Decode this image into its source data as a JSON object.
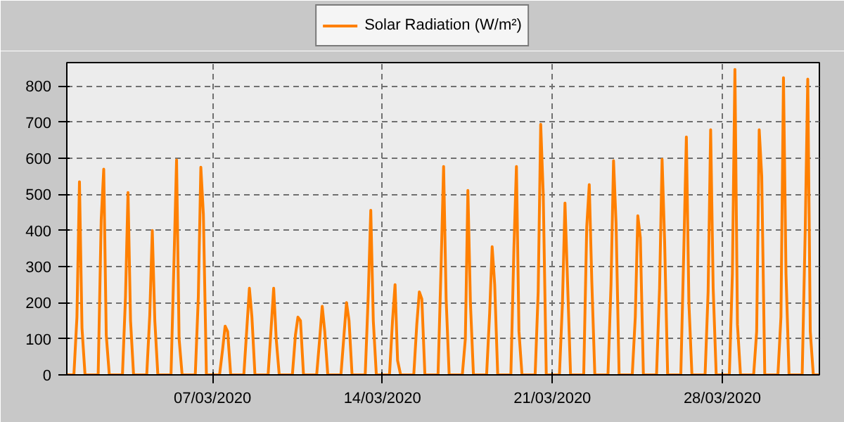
{
  "chart_data": {
    "type": "line",
    "xlim": [
      "2020-03-01T00:00",
      "2020-04-01T00:00"
    ],
    "xticks": [
      {
        "value": "2020-03-07",
        "label": "07/03/2020"
      },
      {
        "value": "2020-03-14",
        "label": "14/03/2020"
      },
      {
        "value": "2020-03-21",
        "label": "21/03/2020"
      },
      {
        "value": "2020-03-28",
        "label": "28/03/2020"
      }
    ],
    "ylim": [
      0,
      865
    ],
    "yticks": [
      0,
      100,
      200,
      300,
      400,
      500,
      600,
      700,
      800
    ],
    "grid": true,
    "legend": "top",
    "marker": "none",
    "line_style": "solid",
    "series": [
      {
        "name": "Solar Radiation (W/m²)",
        "color": "#ff8000",
        "x": [
          "2020-03-01T00:00",
          "2020-03-01T07:00",
          "2020-03-01T10:00",
          "2020-03-01T12:30",
          "2020-03-01T15:00",
          "2020-03-01T18:00",
          "2020-03-02T07:00",
          "2020-03-02T10:00",
          "2020-03-02T12:30",
          "2020-03-02T15:00",
          "2020-03-02T18:00",
          "2020-03-03T07:00",
          "2020-03-03T10:00",
          "2020-03-03T12:30",
          "2020-03-03T15:00",
          "2020-03-03T18:00",
          "2020-03-04T07:00",
          "2020-03-04T10:00",
          "2020-03-04T12:30",
          "2020-03-04T15:00",
          "2020-03-04T18:00",
          "2020-03-05T07:00",
          "2020-03-05T10:00",
          "2020-03-05T12:30",
          "2020-03-05T15:00",
          "2020-03-05T18:00",
          "2020-03-06T07:00",
          "2020-03-06T10:00",
          "2020-03-06T12:30",
          "2020-03-06T15:00",
          "2020-03-06T18:00",
          "2020-03-07T07:00",
          "2020-03-07T10:00",
          "2020-03-07T12:30",
          "2020-03-07T15:00",
          "2020-03-07T18:00",
          "2020-03-08T07:00",
          "2020-03-08T10:00",
          "2020-03-08T12:30",
          "2020-03-08T15:00",
          "2020-03-08T18:00",
          "2020-03-09T07:00",
          "2020-03-09T10:00",
          "2020-03-09T12:30",
          "2020-03-09T15:00",
          "2020-03-09T18:00",
          "2020-03-10T07:00",
          "2020-03-10T10:00",
          "2020-03-10T12:30",
          "2020-03-10T15:00",
          "2020-03-10T18:00",
          "2020-03-11T07:00",
          "2020-03-11T10:00",
          "2020-03-11T12:30",
          "2020-03-11T15:00",
          "2020-03-11T18:00",
          "2020-03-12T07:00",
          "2020-03-12T10:00",
          "2020-03-12T12:30",
          "2020-03-12T15:00",
          "2020-03-12T18:00",
          "2020-03-13T07:00",
          "2020-03-13T10:00",
          "2020-03-13T12:30",
          "2020-03-13T15:00",
          "2020-03-13T18:00",
          "2020-03-14T07:00",
          "2020-03-14T10:00",
          "2020-03-14T12:30",
          "2020-03-14T15:00",
          "2020-03-14T18:00",
          "2020-03-15T07:00",
          "2020-03-15T10:00",
          "2020-03-15T12:30",
          "2020-03-15T15:00",
          "2020-03-15T18:00",
          "2020-03-16T07:00",
          "2020-03-16T10:00",
          "2020-03-16T12:30",
          "2020-03-16T15:00",
          "2020-03-16T18:00",
          "2020-03-17T07:00",
          "2020-03-17T10:00",
          "2020-03-17T12:30",
          "2020-03-17T15:00",
          "2020-03-17T18:00",
          "2020-03-18T07:00",
          "2020-03-18T10:00",
          "2020-03-18T12:30",
          "2020-03-18T15:00",
          "2020-03-18T18:00",
          "2020-03-19T07:00",
          "2020-03-19T10:00",
          "2020-03-19T12:30",
          "2020-03-19T15:00",
          "2020-03-19T18:00",
          "2020-03-20T07:00",
          "2020-03-20T10:00",
          "2020-03-20T12:30",
          "2020-03-20T15:00",
          "2020-03-20T18:00",
          "2020-03-21T07:00",
          "2020-03-21T10:00",
          "2020-03-21T12:30",
          "2020-03-21T15:00",
          "2020-03-21T18:00",
          "2020-03-22T07:00",
          "2020-03-22T10:00",
          "2020-03-22T12:30",
          "2020-03-22T15:00",
          "2020-03-22T18:00",
          "2020-03-23T07:00",
          "2020-03-23T10:00",
          "2020-03-23T12:30",
          "2020-03-23T15:00",
          "2020-03-23T18:00",
          "2020-03-24T07:00",
          "2020-03-24T10:00",
          "2020-03-24T12:30",
          "2020-03-24T15:00",
          "2020-03-24T18:00",
          "2020-03-25T07:00",
          "2020-03-25T10:00",
          "2020-03-25T12:30",
          "2020-03-25T15:00",
          "2020-03-25T18:00",
          "2020-03-26T07:00",
          "2020-03-26T10:00",
          "2020-03-26T12:30",
          "2020-03-26T15:00",
          "2020-03-26T18:00",
          "2020-03-27T07:00",
          "2020-03-27T10:00",
          "2020-03-27T12:30",
          "2020-03-27T15:00",
          "2020-03-27T18:00",
          "2020-03-28T07:00",
          "2020-03-28T10:00",
          "2020-03-28T12:30",
          "2020-03-28T15:00",
          "2020-03-28T18:00",
          "2020-03-29T07:00",
          "2020-03-29T10:00",
          "2020-03-29T12:30",
          "2020-03-29T15:00",
          "2020-03-29T18:00",
          "2020-03-30T07:00",
          "2020-03-30T10:00",
          "2020-03-30T12:30",
          "2020-03-30T15:00",
          "2020-03-30T18:00",
          "2020-03-31T07:00",
          "2020-03-31T10:00",
          "2020-03-31T12:30",
          "2020-03-31T15:00",
          "2020-03-31T18:00",
          "2020-03-31T23:30"
        ],
        "values": [
          0,
          0,
          160,
          535,
          130,
          0,
          0,
          430,
          570,
          110,
          0,
          0,
          215,
          505,
          150,
          0,
          0,
          165,
          400,
          150,
          0,
          0,
          320,
          595,
          100,
          0,
          0,
          215,
          575,
          445,
          0,
          0,
          70,
          135,
          120,
          0,
          0,
          130,
          240,
          160,
          0,
          0,
          130,
          240,
          100,
          0,
          0,
          110,
          160,
          150,
          0,
          0,
          100,
          190,
          120,
          0,
          0,
          110,
          200,
          150,
          0,
          0,
          220,
          456,
          150,
          0,
          0,
          150,
          250,
          40,
          0,
          0,
          140,
          230,
          210,
          0,
          0,
          300,
          577,
          210,
          0,
          0,
          100,
          511,
          200,
          0,
          0,
          170,
          355,
          250,
          0,
          0,
          350,
          577,
          120,
          0,
          0,
          230,
          694,
          500,
          0,
          0,
          200,
          476,
          260,
          0,
          0,
          410,
          527,
          260,
          0,
          0,
          250,
          593,
          420,
          0,
          0,
          160,
          441,
          380,
          0,
          0,
          240,
          597,
          370,
          0,
          0,
          350,
          659,
          200,
          0,
          0,
          230,
          679,
          240,
          0,
          0,
          280,
          846,
          140,
          0,
          0,
          120,
          679,
          550,
          0,
          0,
          160,
          823,
          280,
          0,
          0,
          400,
          819,
          120,
          0,
          0
        ]
      }
    ]
  }
}
